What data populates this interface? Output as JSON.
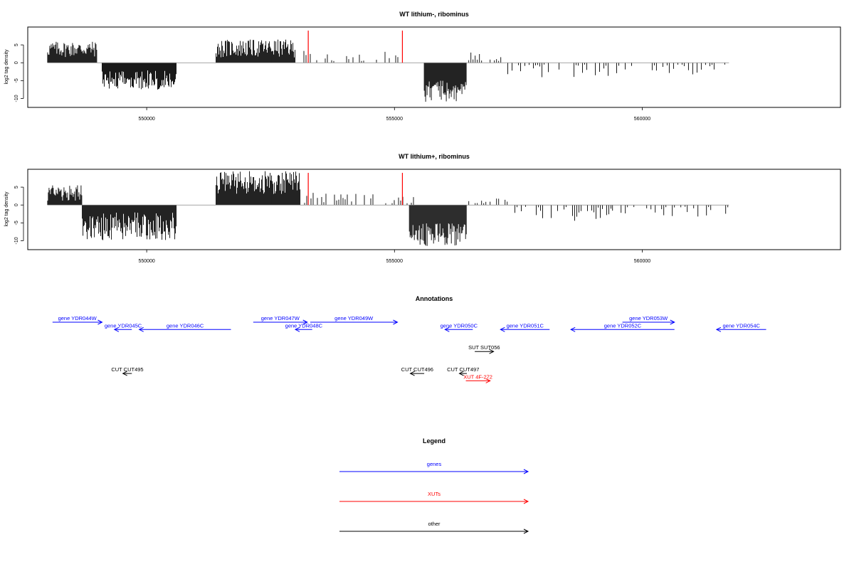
{
  "chart_data": [
    {
      "type": "bar",
      "title": "WT lithium-, ribominus",
      "ylabel": "log2 tag density",
      "ylim": [
        -12.5,
        10
      ],
      "xlim": [
        547600,
        564000
      ],
      "yticks": [
        -10,
        -5,
        0,
        5
      ],
      "xticks": [
        550000,
        555000,
        560000
      ],
      "xtick_labels": [
        "550000",
        "555000",
        "560000"
      ],
      "grid": false,
      "marker_color": "#ff0000",
      "segments": [
        {
          "start": 548000,
          "end": 549000,
          "sign": 1,
          "min": 1.5,
          "max": 6.0
        },
        {
          "start": 549100,
          "end": 550600,
          "sign": -1,
          "min": 2.0,
          "max": 7.5
        },
        {
          "start": 551400,
          "end": 553000,
          "sign": 1,
          "min": 1.5,
          "max": 6.5
        },
        {
          "start": 553000,
          "end": 555100,
          "sign": 1,
          "min": 0.5,
          "max": 3.5,
          "sparse": true
        },
        {
          "start": 555600,
          "end": 556450,
          "sign": -1,
          "min": 5.0,
          "max": 11.0
        },
        {
          "start": 556500,
          "end": 557200,
          "sign": 1,
          "min": 0.5,
          "max": 3.0,
          "sparse": true
        },
        {
          "start": 557200,
          "end": 559900,
          "sign": -1,
          "min": 0.5,
          "max": 4.5,
          "sparse": true
        },
        {
          "start": 560200,
          "end": 561700,
          "sign": -1,
          "min": 0.5,
          "max": 3.5,
          "sparse": true
        }
      ],
      "markers": [
        {
          "x": 553260,
          "y": 9.0
        },
        {
          "x": 555160,
          "y": 9.0
        }
      ]
    },
    {
      "type": "bar",
      "title": "WT lithium+, ribominus",
      "ylabel": "log2 tag density",
      "ylim": [
        -12.5,
        10
      ],
      "xlim": [
        547600,
        564000
      ],
      "yticks": [
        -10,
        -5,
        0,
        5
      ],
      "xticks": [
        550000,
        555000,
        560000
      ],
      "xtick_labels": [
        "550000",
        "555000",
        "560000"
      ],
      "grid": false,
      "marker_color": "#ff0000",
      "segments": [
        {
          "start": 548000,
          "end": 548700,
          "sign": 1,
          "min": 1.0,
          "max": 5.5
        },
        {
          "start": 548700,
          "end": 550600,
          "sign": -1,
          "min": 2.0,
          "max": 10.0
        },
        {
          "start": 551400,
          "end": 553100,
          "sign": 1,
          "min": 3.0,
          "max": 9.5
        },
        {
          "start": 553100,
          "end": 555400,
          "sign": 1,
          "min": 0.5,
          "max": 3.5,
          "sparse": true
        },
        {
          "start": 555300,
          "end": 556450,
          "sign": -1,
          "min": 5.0,
          "max": 11.5
        },
        {
          "start": 556500,
          "end": 557300,
          "sign": 1,
          "min": 0.5,
          "max": 2.5,
          "sparse": true
        },
        {
          "start": 557300,
          "end": 559400,
          "sign": -1,
          "min": 0.5,
          "max": 4.5,
          "sparse": true
        },
        {
          "start": 559400,
          "end": 561750,
          "sign": -1,
          "min": 0.5,
          "max": 3.5,
          "sparse": true
        }
      ],
      "markers": [
        {
          "x": 553260,
          "y": 9.0
        },
        {
          "x": 555160,
          "y": 9.0
        }
      ]
    }
  ],
  "annotations": {
    "title": "Annotations",
    "features": [
      {
        "label": "gene YDR044W",
        "start": 548100,
        "end": 549100,
        "strand": "+",
        "row": 0,
        "color": "#0000ff"
      },
      {
        "label": "gene YDR045C",
        "start": 549350,
        "end": 549700,
        "strand": "-",
        "row": 1,
        "color": "#0000ff"
      },
      {
        "label": "gene YDR046C",
        "start": 549850,
        "end": 551700,
        "strand": "-",
        "row": 1,
        "color": "#0000ff"
      },
      {
        "label": "gene YDR047W",
        "start": 552150,
        "end": 553240,
        "strand": "+",
        "row": 0,
        "color": "#0000ff"
      },
      {
        "label": "gene YDR048C",
        "start": 553000,
        "end": 553340,
        "strand": "-",
        "row": 1,
        "color": "#0000ff"
      },
      {
        "label": "gene YDR049W",
        "start": 553300,
        "end": 555060,
        "strand": "+",
        "row": 0,
        "color": "#0000ff"
      },
      {
        "label": "gene YDR050C",
        "start": 556020,
        "end": 556580,
        "strand": "-",
        "row": 1,
        "color": "#0000ff"
      },
      {
        "label": "gene YDR051C",
        "start": 557140,
        "end": 558130,
        "strand": "-",
        "row": 1,
        "color": "#0000ff"
      },
      {
        "label": "gene YDR052C",
        "start": 558560,
        "end": 560650,
        "strand": "-",
        "row": 1,
        "color": "#0000ff"
      },
      {
        "label": "gene YDR053W",
        "start": 559600,
        "end": 560650,
        "strand": "+",
        "row": 0,
        "color": "#0000ff"
      },
      {
        "label": "gene YDR054C",
        "start": 561500,
        "end": 562500,
        "strand": "-",
        "row": 1,
        "color": "#0000ff"
      },
      {
        "label": "SUT SUT056",
        "start": 556620,
        "end": 557000,
        "strand": "+",
        "row": 4,
        "color": "#000000"
      },
      {
        "label": "CUT CUT495",
        "start": 549520,
        "end": 549700,
        "strand": "-",
        "row": 7,
        "color": "#000000"
      },
      {
        "label": "CUT CUT496",
        "start": 555320,
        "end": 555600,
        "strand": "-",
        "row": 7,
        "color": "#000000"
      },
      {
        "label": "CUT CUT497",
        "start": 556310,
        "end": 556460,
        "strand": "-",
        "row": 7,
        "color": "#000000"
      },
      {
        "label": "XUT 4F-272",
        "start": 556440,
        "end": 556930,
        "strand": "+",
        "row": 8,
        "color": "#ff0000"
      }
    ]
  },
  "legend": {
    "title": "Legend",
    "items": [
      {
        "label": "genes",
        "color": "#0000ff"
      },
      {
        "label": "XUTs",
        "color": "#ff0000"
      },
      {
        "label": "other",
        "color": "#000000"
      }
    ]
  }
}
